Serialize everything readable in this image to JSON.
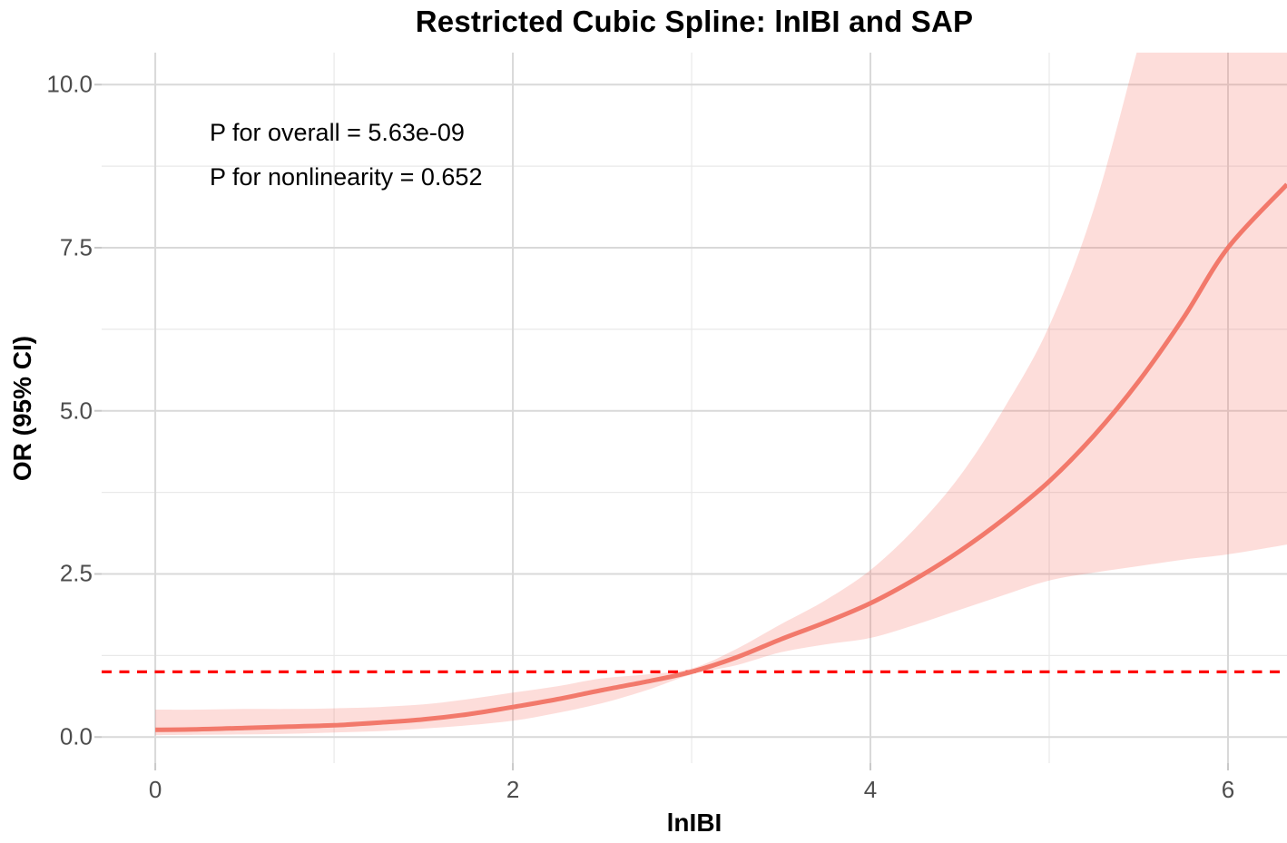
{
  "chart_data": {
    "type": "line",
    "title": "Restricted Cubic Spline: lnIBI and SAP",
    "xlabel": "lnIBI",
    "ylabel": "OR (95% CI)",
    "annotations": [
      "P for overall = 5.63e-09",
      "P for nonlinearity = 0.652"
    ],
    "xlim": [
      -0.3,
      6.33
    ],
    "ylim": [
      -0.4,
      10.49
    ],
    "x_ticks": {
      "values": [
        0,
        2,
        4,
        6
      ],
      "labels": [
        "0",
        "2",
        "4",
        "6"
      ]
    },
    "y_ticks": {
      "values": [
        0,
        2.5,
        5,
        7.5,
        10
      ],
      "labels": [
        "0.0",
        "2.5",
        "5.0",
        "7.5",
        "10.0"
      ]
    },
    "x_minor_gridlines": [
      1,
      3,
      5
    ],
    "y_minor_gridlines": [
      1.25,
      3.75,
      6.25,
      8.75
    ],
    "grid": "on",
    "legend": "none",
    "reference_line": {
      "y": 1.0,
      "style": "dashed",
      "color": "#fe0000"
    },
    "x": [
      0,
      0.25,
      0.5,
      0.75,
      1,
      1.25,
      1.5,
      1.75,
      2,
      2.25,
      2.5,
      2.75,
      3,
      3.25,
      3.5,
      3.75,
      4,
      4.25,
      4.5,
      4.75,
      5,
      5.25,
      5.5,
      5.75,
      6,
      6.33
    ],
    "series": [
      {
        "name": "OR estimate",
        "values": [
          0.11,
          0.12,
          0.14,
          0.16,
          0.18,
          0.22,
          0.27,
          0.35,
          0.46,
          0.58,
          0.72,
          0.85,
          1.0,
          1.22,
          1.5,
          1.76,
          2.05,
          2.42,
          2.85,
          3.35,
          3.92,
          4.62,
          5.45,
          6.42,
          7.5,
          8.47
        ]
      },
      {
        "name": "95% CI lower",
        "values": [
          0.03,
          0.035,
          0.04,
          0.05,
          0.07,
          0.09,
          0.13,
          0.18,
          0.25,
          0.37,
          0.52,
          0.72,
          0.96,
          1.1,
          1.3,
          1.42,
          1.52,
          1.72,
          1.95,
          2.18,
          2.4,
          2.52,
          2.62,
          2.72,
          2.8,
          2.95
        ]
      },
      {
        "name": "95% CI upper",
        "values": [
          0.42,
          0.42,
          0.43,
          0.43,
          0.44,
          0.46,
          0.5,
          0.58,
          0.68,
          0.78,
          0.9,
          0.96,
          1.05,
          1.35,
          1.73,
          2.1,
          2.56,
          3.2,
          4.0,
          5.05,
          6.3,
          8.1,
          10.6,
          13.2,
          16.0,
          19.0
        ]
      }
    ],
    "colors": {
      "line": "#f2796b",
      "band_fill": "#f8766d",
      "band_opacity": 0.25,
      "reference": "#fe0000",
      "grid_major": "#d9d9d9",
      "grid_minor": "#e9e9e9",
      "axis_tick": "#c9c9c9",
      "tick_label": "#4d4d4d",
      "text": "#000000"
    }
  }
}
